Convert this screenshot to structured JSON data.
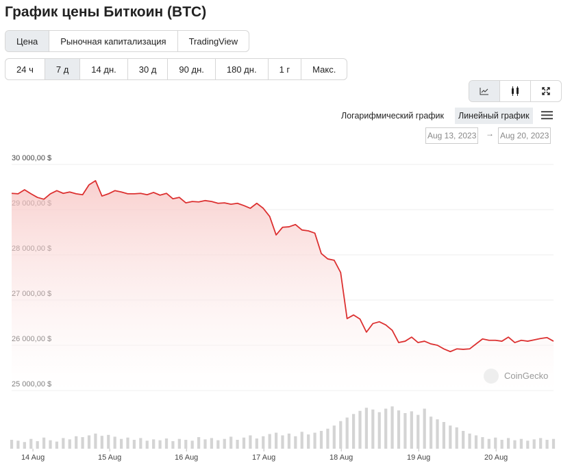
{
  "header": {
    "title": "График цены Биткоин (BTC)"
  },
  "tabs": [
    "Цена",
    "Рыночная капитализация",
    "TradingView"
  ],
  "periods": [
    "24 ч",
    "7 д",
    "14 дн.",
    "30 д",
    "90 дн.",
    "180 дн.",
    "1 г",
    "Макс."
  ],
  "scale_buttons": [
    "Логарифмический график",
    "Линейный график"
  ],
  "date_range": {
    "from": "Aug 13, 2023",
    "arrow": "→",
    "to": "Aug 20, 2023"
  },
  "watermark": "CoinGecko",
  "chart_data": {
    "type": "line",
    "grid": true,
    "xlim": [
      0,
      84
    ],
    "xticks": [
      {
        "value": 3.3,
        "label": "14 Aug"
      },
      {
        "value": 15.2,
        "label": "15 Aug"
      },
      {
        "value": 27.1,
        "label": "16 Aug"
      },
      {
        "value": 39.1,
        "label": "17 Aug"
      },
      {
        "value": 51.1,
        "label": "18 Aug"
      },
      {
        "value": 63.1,
        "label": "19 Aug"
      },
      {
        "value": 75.1,
        "label": "20 Aug"
      }
    ],
    "ylim": [
      25000,
      30000
    ],
    "yticks": [
      {
        "value": 25000,
        "label": "25 000,00 $"
      },
      {
        "value": 26000,
        "label": "26 000,00 $"
      },
      {
        "value": 27000,
        "label": "27 000,00 $"
      },
      {
        "value": 28000,
        "label": "28 000,00 $"
      },
      {
        "value": 29000,
        "label": "29 000,00 $"
      },
      {
        "value": 30000,
        "label": "30 000,00 $"
      }
    ],
    "y2lim": [
      0,
      100
    ],
    "series": [
      {
        "color": "#dc3030",
        "values": [
          29360,
          29350,
          29440,
          29350,
          29270,
          29230,
          29350,
          29420,
          29360,
          29390,
          29350,
          29330,
          29550,
          29640,
          29300,
          29350,
          29420,
          29390,
          29350,
          29350,
          29360,
          29330,
          29380,
          29320,
          29360,
          29240,
          29270,
          29150,
          29180,
          29170,
          29200,
          29180,
          29140,
          29150,
          29120,
          29140,
          29090,
          29030,
          29140,
          29030,
          28850,
          28440,
          28610,
          28620,
          28670,
          28550,
          28530,
          28480,
          28030,
          27910,
          27880,
          27610,
          26590,
          26670,
          26580,
          26290,
          26480,
          26520,
          26450,
          26330,
          26060,
          26090,
          26180,
          26060,
          26090,
          26030,
          26000,
          25920,
          25860,
          25920,
          25910,
          25920,
          26030,
          26140,
          26110,
          26110,
          26090,
          26180,
          26060,
          26110,
          26090,
          26120,
          26150,
          26170,
          26090
        ]
      },
      {
        "type": "bar",
        "axis": "y2",
        "color": "#d4d4d4",
        "values": [
          20,
          18,
          15,
          22,
          17,
          25,
          19,
          16,
          24,
          21,
          28,
          26,
          30,
          34,
          29,
          31,
          27,
          22,
          25,
          20,
          24,
          18,
          21,
          19,
          23,
          17,
          22,
          20,
          18,
          26,
          21,
          24,
          19,
          22,
          27,
          20,
          25,
          30,
          23,
          28,
          33,
          36,
          30,
          34,
          28,
          38,
          32,
          36,
          40,
          45,
          52,
          62,
          70,
          78,
          85,
          92,
          88,
          82,
          90,
          95,
          86,
          80,
          84,
          76,
          90,
          72,
          66,
          60,
          52,
          48,
          40,
          34,
          30,
          26,
          22,
          25,
          20,
          24,
          19,
          22,
          18,
          21,
          24,
          20,
          22
        ]
      }
    ]
  }
}
